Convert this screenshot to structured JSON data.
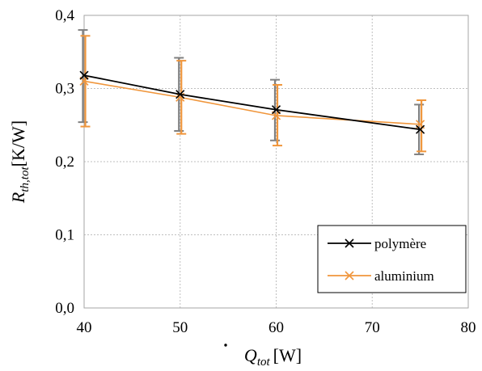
{
  "chart_data": {
    "type": "line",
    "x_axis": {
      "label_symbol": "Q",
      "label_subscript": "tot",
      "label_unit": "[W]",
      "min": 40,
      "max": 80,
      "ticks": [
        40,
        50,
        60,
        70,
        80
      ],
      "tick_labels": [
        "40",
        "50",
        "60",
        "70",
        "80"
      ]
    },
    "y_axis": {
      "label_symbol": "R",
      "label_subscript": "th,tot",
      "label_unit": "[K/W]",
      "min": 0.0,
      "max": 0.4,
      "ticks": [
        0.0,
        0.1,
        0.2,
        0.3,
        0.4
      ],
      "tick_labels": [
        "0,0",
        "0,1",
        "0,2",
        "0,3",
        "0,4"
      ]
    },
    "grid": true,
    "legend_position": "bottom-right",
    "series": [
      {
        "name": "polymère",
        "color": "#000000",
        "errorbar_color": "#808080",
        "marker": "x",
        "x": [
          40,
          50,
          60,
          75
        ],
        "y": [
          0.318,
          0.292,
          0.271,
          0.244
        ],
        "err_low": [
          0.254,
          0.242,
          0.229,
          0.21
        ],
        "err_high": [
          0.38,
          0.342,
          0.312,
          0.278
        ]
      },
      {
        "name": "aluminium",
        "color": "#f0963c",
        "errorbar_color": "#f0963c",
        "marker": "x",
        "x": [
          40,
          50,
          60,
          75
        ],
        "y": [
          0.31,
          0.288,
          0.263,
          0.251
        ],
        "err_low": [
          0.248,
          0.238,
          0.222,
          0.214
        ],
        "err_high": [
          0.372,
          0.338,
          0.305,
          0.284
        ]
      }
    ]
  }
}
